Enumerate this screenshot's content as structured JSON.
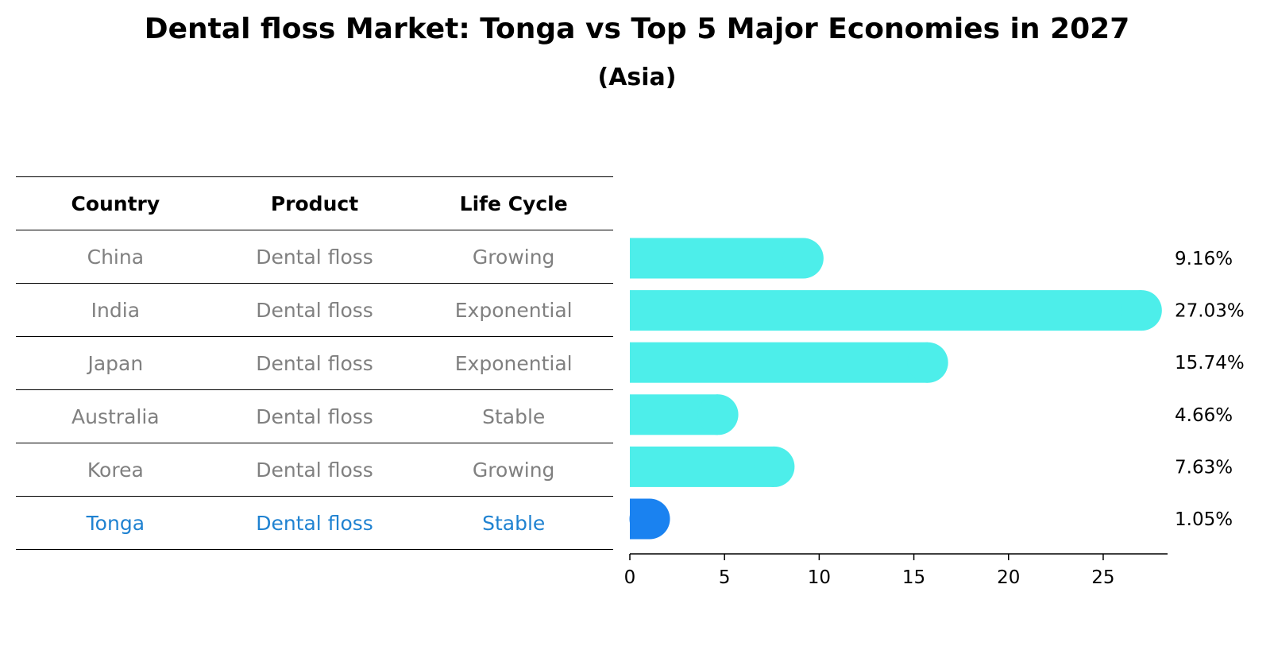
{
  "title": "Dental floss Market: Tonga vs Top 5 Major Economies in 2027",
  "subtitle": "(Asia)",
  "table": {
    "headers": [
      "Country",
      "Product",
      "Life Cycle"
    ],
    "rows": [
      {
        "country": "China",
        "product": "Dental floss",
        "life_cycle": "Growing"
      },
      {
        "country": "India",
        "product": "Dental floss",
        "life_cycle": "Exponential"
      },
      {
        "country": "Japan",
        "product": "Dental floss",
        "life_cycle": "Exponential"
      },
      {
        "country": "Australia",
        "product": "Dental floss",
        "life_cycle": "Stable"
      },
      {
        "country": "Korea",
        "product": "Dental floss",
        "life_cycle": "Growing"
      },
      {
        "country": "Tonga",
        "product": "Dental floss",
        "life_cycle": "Stable"
      }
    ]
  },
  "colors": {
    "bar": "#4deeea",
    "highlight_bar": "#1a82f0",
    "highlight_text": "#1f82d1",
    "muted_text": "#808080"
  },
  "chart_data": {
    "type": "bar",
    "orientation": "horizontal",
    "title": "Dental floss Market: Tonga vs Top 5 Major Economies in 2027",
    "subtitle": "(Asia)",
    "categories": [
      "China",
      "India",
      "Japan",
      "Australia",
      "Korea",
      "Tonga"
    ],
    "values": [
      9.16,
      27.03,
      15.74,
      4.66,
      7.63,
      1.05
    ],
    "value_labels": [
      "9.16%",
      "27.03%",
      "15.74%",
      "4.66%",
      "7.63%",
      "1.05%"
    ],
    "highlight": "Tonga",
    "xlim": [
      0,
      28.4
    ],
    "xticks": [
      0,
      5,
      10,
      15,
      20,
      25
    ],
    "xlabel": "",
    "ylabel": "",
    "grid": false
  }
}
